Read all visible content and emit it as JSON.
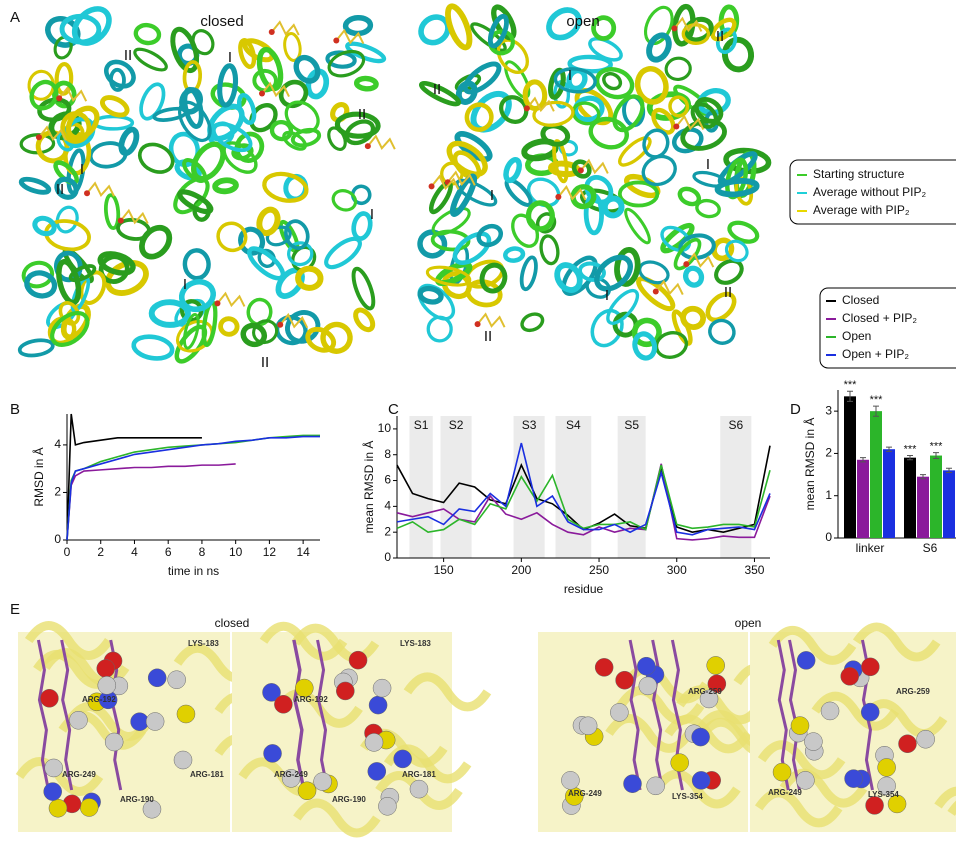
{
  "panel_a": {
    "label": "A",
    "closed_title": "closed",
    "open_title": "open",
    "closed_sites": [
      "II",
      "I",
      "II",
      "I",
      "II",
      "I",
      "I",
      "II"
    ],
    "open_sites": [
      "II",
      "I",
      "II",
      "I",
      "I",
      "I",
      "II",
      "II"
    ],
    "legend": [
      {
        "name": "Starting structure",
        "color": "#3ccc2a"
      },
      {
        "name": "Average without PIP₂",
        "color": "#1fd0d8"
      },
      {
        "name": "Average with PIP₂",
        "color": "#e8d800"
      }
    ]
  },
  "chart_data": [
    {
      "type": "line",
      "panel": "B",
      "x_label": "time in ns",
      "y_label": "RMSD in Å",
      "x": [
        0,
        0.25,
        0.5,
        1,
        2,
        3,
        4,
        5,
        6,
        7,
        8,
        9,
        10,
        11,
        12,
        13,
        14,
        15
      ],
      "xlim": [
        0,
        15
      ],
      "xticks": [
        0,
        2,
        4,
        6,
        8,
        10,
        12,
        14
      ],
      "ylim": [
        0,
        5.3
      ],
      "yticks": [
        0,
        2,
        4
      ],
      "series": [
        {
          "name": "Closed",
          "color": "#000000",
          "values": [
            0,
            5.3,
            4.0,
            4.1,
            4.2,
            4.3,
            4.3,
            4.3,
            4.3,
            4.3,
            4.3,
            null,
            null,
            null,
            null,
            null,
            null,
            null
          ]
        },
        {
          "name": "Closed + PIP₂",
          "color": "#8a1a9b",
          "values": [
            0,
            2.3,
            2.7,
            2.9,
            2.95,
            3.0,
            3.05,
            3.05,
            3.1,
            3.1,
            3.15,
            3.15,
            3.2,
            null,
            null,
            null,
            null,
            null
          ]
        },
        {
          "name": "Open",
          "color": "#2cb52a",
          "values": [
            0,
            2.5,
            2.9,
            3.0,
            3.3,
            3.5,
            3.7,
            3.8,
            3.9,
            3.95,
            4.0,
            4.05,
            4.1,
            4.2,
            4.3,
            4.35,
            4.4,
            4.4
          ]
        },
        {
          "name": "Open + PIP₂",
          "color": "#1a2fe0",
          "values": [
            0,
            2.4,
            2.9,
            3.0,
            3.2,
            3.4,
            3.6,
            3.7,
            3.8,
            3.9,
            4.0,
            4.05,
            4.15,
            4.2,
            4.3,
            4.3,
            4.35,
            4.35
          ]
        }
      ]
    },
    {
      "type": "line",
      "panel": "C",
      "x_label": "residue",
      "y_label": "mean RMSD in Å",
      "x": [
        120,
        130,
        140,
        150,
        160,
        170,
        180,
        190,
        200,
        210,
        220,
        230,
        240,
        250,
        260,
        270,
        280,
        290,
        300,
        310,
        320,
        330,
        340,
        350,
        360
      ],
      "xlim": [
        120,
        360
      ],
      "xticks": [
        150,
        200,
        250,
        300,
        350
      ],
      "ylim": [
        0,
        11
      ],
      "yticks": [
        0,
        2,
        4,
        6,
        8,
        10
      ],
      "regions": [
        {
          "label": "S1",
          "start": 128,
          "end": 143
        },
        {
          "label": "S2",
          "start": 148,
          "end": 168
        },
        {
          "label": "S3",
          "start": 195,
          "end": 215
        },
        {
          "label": "S4",
          "start": 222,
          "end": 245
        },
        {
          "label": "S5",
          "start": 262,
          "end": 280
        },
        {
          "label": "S6",
          "start": 328,
          "end": 348
        }
      ],
      "series": [
        {
          "name": "Closed",
          "color": "#000000",
          "values": [
            7.2,
            5.0,
            4.6,
            4.3,
            5.8,
            5.5,
            4.5,
            4.2,
            7.2,
            4.6,
            4.2,
            3.3,
            2.2,
            2.7,
            3.4,
            2.5,
            2.3,
            7.0,
            2.4,
            2.0,
            2.2,
            2.0,
            2.3,
            2.6,
            8.7
          ]
        },
        {
          "name": "Closed + PIP₂",
          "color": "#8a1a9b",
          "values": [
            3.5,
            3.2,
            3.5,
            3.8,
            3.0,
            2.8,
            4.8,
            3.4,
            3.0,
            3.5,
            2.6,
            2.0,
            1.8,
            2.4,
            2.0,
            2.3,
            2.2,
            7.3,
            1.5,
            1.4,
            1.5,
            1.7,
            1.6,
            1.6,
            4.8
          ]
        },
        {
          "name": "Open",
          "color": "#2cb52a",
          "values": [
            2.3,
            2.8,
            2.0,
            2.2,
            3.0,
            2.6,
            4.2,
            3.8,
            6.3,
            4.4,
            6.4,
            3.0,
            2.3,
            2.6,
            2.6,
            2.8,
            2.2,
            7.2,
            2.6,
            2.3,
            2.4,
            2.6,
            2.6,
            2.4,
            6.8
          ]
        },
        {
          "name": "Open + PIP₂",
          "color": "#1a2fe0",
          "values": [
            2.8,
            3.0,
            3.2,
            2.6,
            3.8,
            3.6,
            5.0,
            4.0,
            8.9,
            4.0,
            4.8,
            2.8,
            2.2,
            2.2,
            2.6,
            2.0,
            2.6,
            6.6,
            2.0,
            1.8,
            2.2,
            2.3,
            2.4,
            2.2,
            5.0
          ]
        }
      ]
    },
    {
      "type": "bar",
      "panel": "D",
      "y_label": "mean RMSD in Å",
      "categories": [
        "linker",
        "S6"
      ],
      "ylim": [
        0,
        3.5
      ],
      "yticks": [
        0,
        1,
        2,
        3
      ],
      "series": [
        {
          "name": "Closed",
          "color": "#000000",
          "values": [
            3.35,
            1.9
          ],
          "errors": [
            0.12,
            0.05
          ],
          "significance": [
            "***",
            "***"
          ]
        },
        {
          "name": "Closed + PIP₂",
          "color": "#8a1a9b",
          "values": [
            1.85,
            1.45
          ],
          "errors": [
            0.05,
            0.05
          ]
        },
        {
          "name": "Open",
          "color": "#2cb52a",
          "values": [
            3.0,
            1.95
          ],
          "errors": [
            0.12,
            0.07
          ],
          "significance": [
            "***",
            "***"
          ]
        },
        {
          "name": "Open + PIP₂",
          "color": "#1a2fe0",
          "values": [
            2.1,
            1.6
          ],
          "errors": [
            0.05,
            0.05
          ]
        }
      ]
    }
  ],
  "panel_e": {
    "label": "E",
    "closed_title": "closed",
    "open_title": "open",
    "closed_views": [
      [
        "LYS-183",
        "ARG-192",
        "ARG-249",
        "ARG-181",
        "ARG-190"
      ],
      [
        "LYS-183",
        "ARG-192",
        "ARG-249",
        "ARG-181",
        "ARG-190"
      ]
    ],
    "open_views": [
      [
        "ARG-259",
        "ARG-249",
        "LYS-354"
      ],
      [
        "ARG-259",
        "ARG-249",
        "LYS-354"
      ]
    ]
  }
}
